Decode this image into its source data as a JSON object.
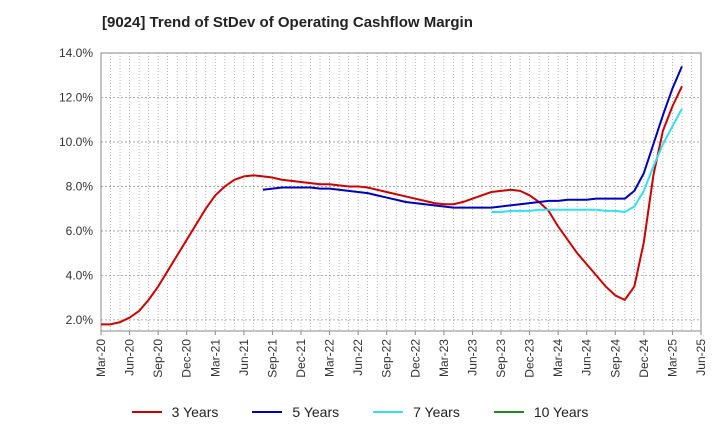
{
  "chart_data": {
    "type": "line",
    "title": "[9024]  Trend of StDev of Operating Cashflow Margin",
    "xlabel": "",
    "ylabel": "",
    "ylim": [
      1.5,
      14.0
    ],
    "yticks": [
      "2.0%",
      "4.0%",
      "6.0%",
      "8.0%",
      "10.0%",
      "12.0%",
      "14.0%"
    ],
    "x_tick_labels": [
      "Mar-20",
      "Jun-20",
      "Sep-20",
      "Dec-20",
      "Mar-21",
      "Jun-21",
      "Sep-21",
      "Dec-21",
      "Mar-22",
      "Jun-22",
      "Sep-22",
      "Dec-22",
      "Mar-23",
      "Jun-23",
      "Sep-23",
      "Dec-23",
      "Mar-24",
      "Jun-24",
      "Sep-24",
      "Dec-24",
      "Mar-25",
      "Jun-25"
    ],
    "grid": true,
    "legend_position": "bottom",
    "series": [
      {
        "name": "3 Years",
        "color": "#cc0000",
        "points": [
          [
            "Mar-20",
            1.8
          ],
          [
            "Apr-20",
            1.8
          ],
          [
            "May-20",
            1.9
          ],
          [
            "Jun-20",
            2.1
          ],
          [
            "Jul-20",
            2.4
          ],
          [
            "Aug-20",
            2.9
          ],
          [
            "Sep-20",
            3.5
          ],
          [
            "Oct-20",
            4.2
          ],
          [
            "Nov-20",
            4.9
          ],
          [
            "Dec-20",
            5.6
          ],
          [
            "Jan-21",
            6.3
          ],
          [
            "Feb-21",
            7.0
          ],
          [
            "Mar-21",
            7.6
          ],
          [
            "Apr-21",
            8.0
          ],
          [
            "May-21",
            8.3
          ],
          [
            "Jun-21",
            8.45
          ],
          [
            "Jul-21",
            8.5
          ],
          [
            "Aug-21",
            8.45
          ],
          [
            "Sep-21",
            8.4
          ],
          [
            "Oct-21",
            8.3
          ],
          [
            "Nov-21",
            8.25
          ],
          [
            "Dec-21",
            8.2
          ],
          [
            "Jan-22",
            8.15
          ],
          [
            "Feb-22",
            8.1
          ],
          [
            "Mar-22",
            8.1
          ],
          [
            "Apr-22",
            8.05
          ],
          [
            "May-22",
            8.0
          ],
          [
            "Jun-22",
            8.0
          ],
          [
            "Jul-22",
            7.95
          ],
          [
            "Aug-22",
            7.85
          ],
          [
            "Sep-22",
            7.75
          ],
          [
            "Oct-22",
            7.65
          ],
          [
            "Nov-22",
            7.55
          ],
          [
            "Dec-22",
            7.45
          ],
          [
            "Jan-23",
            7.35
          ],
          [
            "Feb-23",
            7.25
          ],
          [
            "Mar-23",
            7.2
          ],
          [
            "Apr-23",
            7.2
          ],
          [
            "May-23",
            7.3
          ],
          [
            "Jun-23",
            7.45
          ],
          [
            "Jul-23",
            7.6
          ],
          [
            "Aug-23",
            7.75
          ],
          [
            "Sep-23",
            7.8
          ],
          [
            "Oct-23",
            7.85
          ],
          [
            "Nov-23",
            7.8
          ],
          [
            "Dec-23",
            7.6
          ],
          [
            "Jan-24",
            7.3
          ],
          [
            "Feb-24",
            6.9
          ],
          [
            "Mar-24",
            6.2
          ],
          [
            "Apr-24",
            5.6
          ],
          [
            "May-24",
            5.0
          ],
          [
            "Jun-24",
            4.5
          ],
          [
            "Jul-24",
            4.0
          ],
          [
            "Aug-24",
            3.5
          ],
          [
            "Sep-24",
            3.1
          ],
          [
            "Oct-24",
            2.9
          ],
          [
            "Nov-24",
            3.5
          ],
          [
            "Dec-24",
            5.5
          ],
          [
            "Jan-25",
            8.5
          ],
          [
            "Feb-25",
            10.5
          ],
          [
            "Mar-25",
            11.6
          ],
          [
            "Apr-25",
            12.5
          ]
        ]
      },
      {
        "name": "5 Years",
        "color": "#0000bb",
        "points": [
          [
            "Aug-21",
            7.85
          ],
          [
            "Sep-21",
            7.9
          ],
          [
            "Oct-21",
            7.95
          ],
          [
            "Nov-21",
            7.95
          ],
          [
            "Dec-21",
            7.95
          ],
          [
            "Jan-22",
            7.95
          ],
          [
            "Feb-22",
            7.9
          ],
          [
            "Mar-22",
            7.9
          ],
          [
            "Apr-22",
            7.85
          ],
          [
            "May-22",
            7.8
          ],
          [
            "Jun-22",
            7.75
          ],
          [
            "Jul-22",
            7.7
          ],
          [
            "Aug-22",
            7.6
          ],
          [
            "Sep-22",
            7.5
          ],
          [
            "Oct-22",
            7.4
          ],
          [
            "Nov-22",
            7.3
          ],
          [
            "Dec-22",
            7.25
          ],
          [
            "Jan-23",
            7.2
          ],
          [
            "Feb-23",
            7.15
          ],
          [
            "Mar-23",
            7.1
          ],
          [
            "Apr-23",
            7.05
          ],
          [
            "May-23",
            7.05
          ],
          [
            "Jun-23",
            7.05
          ],
          [
            "Jul-23",
            7.05
          ],
          [
            "Aug-23",
            7.05
          ],
          [
            "Sep-23",
            7.1
          ],
          [
            "Oct-23",
            7.15
          ],
          [
            "Nov-23",
            7.2
          ],
          [
            "Dec-23",
            7.25
          ],
          [
            "Jan-24",
            7.3
          ],
          [
            "Feb-24",
            7.35
          ],
          [
            "Mar-24",
            7.35
          ],
          [
            "Apr-24",
            7.4
          ],
          [
            "May-24",
            7.4
          ],
          [
            "Jun-24",
            7.4
          ],
          [
            "Jul-24",
            7.45
          ],
          [
            "Aug-24",
            7.45
          ],
          [
            "Sep-24",
            7.45
          ],
          [
            "Oct-24",
            7.45
          ],
          [
            "Nov-24",
            7.8
          ],
          [
            "Dec-24",
            8.6
          ],
          [
            "Jan-25",
            9.9
          ],
          [
            "Feb-25",
            11.2
          ],
          [
            "Mar-25",
            12.4
          ],
          [
            "Apr-25",
            13.4
          ]
        ]
      },
      {
        "name": "7 Years",
        "color": "#33e0f0",
        "points": [
          [
            "Aug-23",
            6.85
          ],
          [
            "Sep-23",
            6.85
          ],
          [
            "Oct-23",
            6.9
          ],
          [
            "Nov-23",
            6.9
          ],
          [
            "Dec-23",
            6.9
          ],
          [
            "Jan-24",
            6.95
          ],
          [
            "Feb-24",
            6.95
          ],
          [
            "Mar-24",
            6.95
          ],
          [
            "Apr-24",
            6.95
          ],
          [
            "May-24",
            6.95
          ],
          [
            "Jun-24",
            6.95
          ],
          [
            "Jul-24",
            6.95
          ],
          [
            "Aug-24",
            6.9
          ],
          [
            "Sep-24",
            6.9
          ],
          [
            "Oct-24",
            6.85
          ],
          [
            "Nov-24",
            7.1
          ],
          [
            "Dec-24",
            7.8
          ],
          [
            "Jan-25",
            8.9
          ],
          [
            "Feb-25",
            9.9
          ],
          [
            "Mar-25",
            10.7
          ],
          [
            "Apr-25",
            11.5
          ]
        ]
      },
      {
        "name": "10 Years",
        "color": "#228822",
        "points": []
      }
    ]
  }
}
